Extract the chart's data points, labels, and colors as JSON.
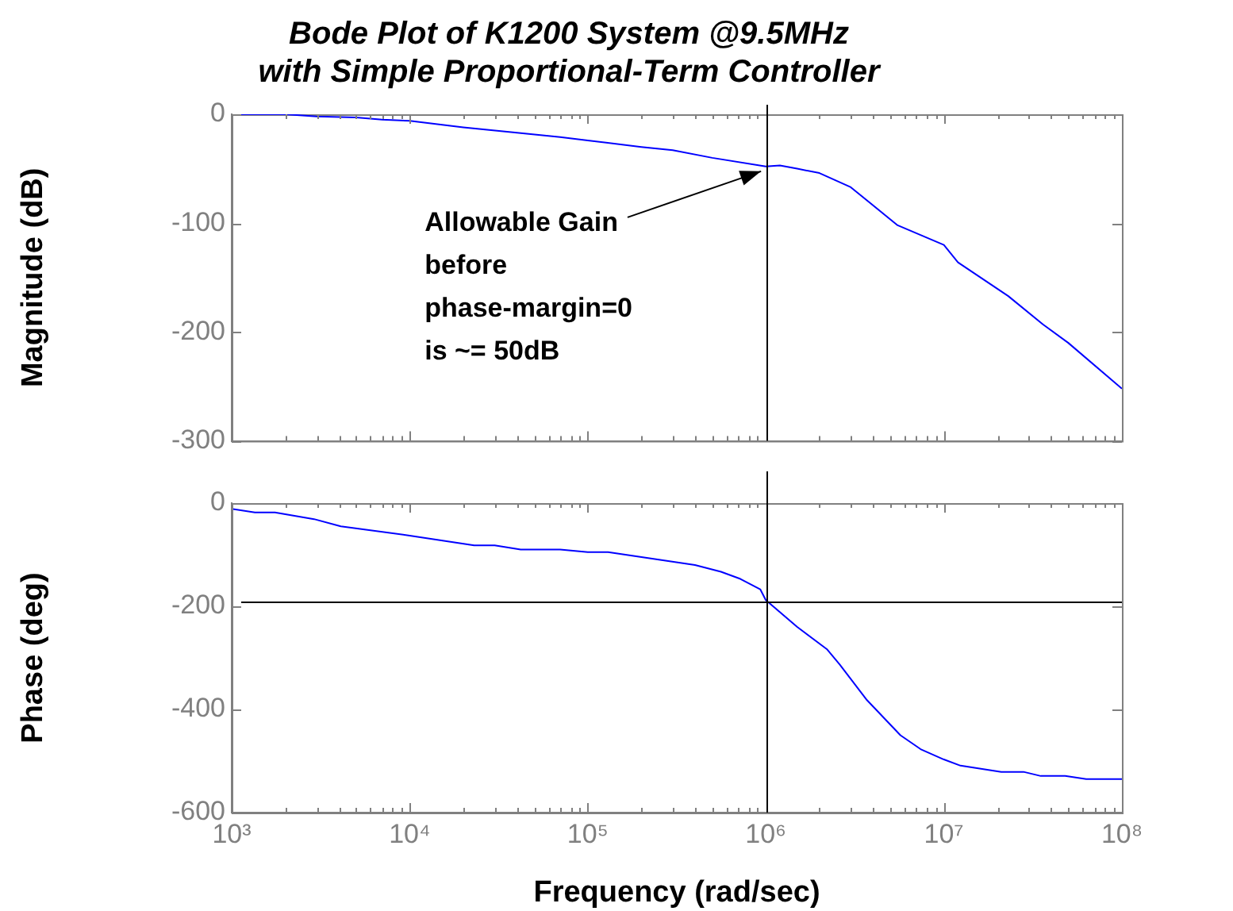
{
  "chart_data": [
    {
      "type": "line",
      "title": "Bode Plot of K1200 System @9.5MHz\nwith Simple Proportional-Term Controller",
      "ylabel": "Magnitude (dB)",
      "log": "x",
      "x": [
        1000,
        2000,
        3000,
        5000,
        7000,
        10000,
        20000,
        40000,
        70000,
        100000,
        200000,
        300000,
        500000,
        1000000,
        1200000,
        1500000,
        2000000,
        3000000,
        5500000,
        10000000,
        12000000,
        23000000,
        36000000,
        50000000,
        100000000
      ],
      "series": [
        {
          "color": "#0000ff",
          "values": [
            0,
            0,
            -2,
            -3,
            -5,
            -6,
            -12,
            -17,
            -21,
            -24,
            -30,
            -33,
            -40,
            -48,
            -47,
            -50,
            -54,
            -67,
            -102,
            -120,
            -136,
            -167,
            -193,
            -210,
            -252
          ]
        }
      ],
      "xlim": [
        1000,
        100000000
      ],
      "xticks": [
        1000,
        10000,
        100000,
        1000000,
        10000000,
        100000000
      ],
      "ylim": [
        -300,
        0
      ],
      "yticks": [
        -300,
        -200,
        -100,
        0
      ],
      "tick_labels": "y",
      "grid": false,
      "legend": false,
      "ref_lines": [
        {
          "axis": "x",
          "value": 1000000,
          "color": "#000000"
        }
      ],
      "annotations": [
        {
          "text": "Allowable Gain\nbefore\nphase-margin=0\nis ~= 50dB",
          "x": 1000000,
          "y": -48
        }
      ]
    },
    {
      "type": "line",
      "xlabel": "Frequency (rad/sec)",
      "ylabel": "Phase (deg)",
      "log": "x",
      "x": [
        1000,
        1350,
        1750,
        2900,
        4100,
        10000,
        23000,
        30000,
        42000,
        70000,
        100000,
        130000,
        400000,
        560000,
        720000,
        930000,
        1000000,
        1500000,
        2200000,
        2600000,
        3700000,
        5700000,
        7400000,
        10000000,
        12400000,
        21000000,
        28000000,
        35000000,
        48000000,
        63000000,
        100000000
      ],
      "series": [
        {
          "color": "#0000ff",
          "values": [
            -11,
            -18,
            -18,
            -31,
            -45,
            -63,
            -82,
            -82,
            -90,
            -90,
            -95,
            -95,
            -120,
            -133,
            -147,
            -167,
            -188,
            -240,
            -283,
            -313,
            -382,
            -450,
            -477,
            -497,
            -509,
            -521,
            -521,
            -529,
            -529,
            -535,
            -535
          ]
        }
      ],
      "xlim": [
        1000,
        100000000
      ],
      "xticks": [
        {
          "value": 1000,
          "label": "10³"
        },
        {
          "value": 10000,
          "label": "10⁴"
        },
        {
          "value": 100000,
          "label": "10⁵"
        },
        {
          "value": 1000000,
          "label": "10⁶"
        },
        {
          "value": 10000000,
          "label": "10⁷"
        },
        {
          "value": 100000000,
          "label": "10⁸"
        }
      ],
      "ylim": [
        -600,
        0
      ],
      "yticks": [
        -600,
        -400,
        -200,
        0
      ],
      "grid": false,
      "legend": false,
      "ref_lines": [
        {
          "axis": "x",
          "value": 1000000,
          "color": "#000000"
        },
        {
          "axis": "y",
          "value": -190,
          "color": "#000000"
        }
      ]
    }
  ]
}
